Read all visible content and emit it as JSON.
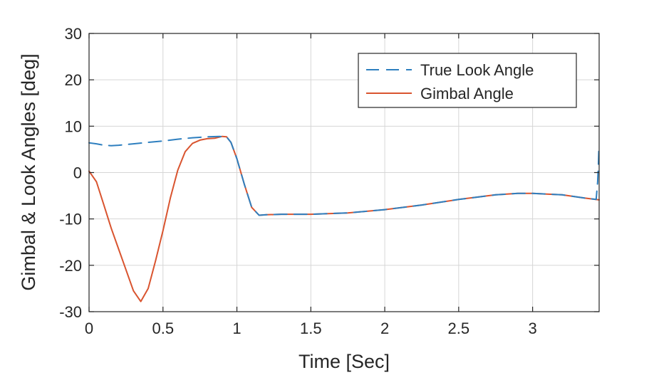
{
  "chart_data": {
    "type": "line",
    "title": "",
    "xlabel": "Time [Sec]",
    "ylabel": "Gimbal & Look Angles [deg]",
    "xlim": [
      0,
      3.45
    ],
    "ylim": [
      -30,
      30
    ],
    "xticks": [
      0,
      0.5,
      1,
      1.5,
      2,
      2.5,
      3
    ],
    "xtick_labels": [
      "0",
      "0.5",
      "1",
      "1.5",
      "2",
      "2.5",
      "3"
    ],
    "yticks": [
      30,
      20,
      10,
      0,
      -10,
      -20,
      -30
    ],
    "ytick_labels": [
      "30",
      "20",
      "10",
      "0",
      "-10",
      "-20",
      "-30"
    ],
    "grid": true,
    "legend_position": "top-right",
    "series": [
      {
        "name": "True Look Angle",
        "style": "dashed",
        "color": "#2e7fbf",
        "points": [
          [
            0,
            6.4
          ],
          [
            0.05,
            6.2
          ],
          [
            0.1,
            5.9
          ],
          [
            0.15,
            5.8
          ],
          [
            0.2,
            5.9
          ],
          [
            0.3,
            6.2
          ],
          [
            0.4,
            6.5
          ],
          [
            0.5,
            6.8
          ],
          [
            0.6,
            7.2
          ],
          [
            0.7,
            7.5
          ],
          [
            0.8,
            7.7
          ],
          [
            0.88,
            7.8
          ],
          [
            0.93,
            7.7
          ],
          [
            0.96,
            6.5
          ],
          [
            1.0,
            3.0
          ],
          [
            1.05,
            -2.5
          ],
          [
            1.1,
            -7.5
          ],
          [
            1.15,
            -9.2
          ],
          [
            1.2,
            -9.1
          ],
          [
            1.3,
            -9.0
          ],
          [
            1.5,
            -9.0
          ],
          [
            1.75,
            -8.7
          ],
          [
            2.0,
            -8.0
          ],
          [
            2.25,
            -7.0
          ],
          [
            2.5,
            -5.8
          ],
          [
            2.75,
            -4.8
          ],
          [
            2.9,
            -4.5
          ],
          [
            3.0,
            -4.5
          ],
          [
            3.2,
            -4.8
          ],
          [
            3.35,
            -5.5
          ],
          [
            3.43,
            -5.8
          ],
          [
            3.44,
            -2.0
          ],
          [
            3.445,
            2.0
          ],
          [
            3.448,
            5.0
          ]
        ]
      },
      {
        "name": "Gimbal Angle",
        "style": "solid",
        "color": "#d9542f",
        "points": [
          [
            0,
            0.3
          ],
          [
            0.05,
            -2.0
          ],
          [
            0.1,
            -7.0
          ],
          [
            0.15,
            -12.0
          ],
          [
            0.2,
            -16.5
          ],
          [
            0.25,
            -21.0
          ],
          [
            0.3,
            -25.5
          ],
          [
            0.35,
            -27.8
          ],
          [
            0.4,
            -25.0
          ],
          [
            0.45,
            -19.0
          ],
          [
            0.5,
            -12.5
          ],
          [
            0.55,
            -5.5
          ],
          [
            0.6,
            0.5
          ],
          [
            0.65,
            4.5
          ],
          [
            0.7,
            6.3
          ],
          [
            0.75,
            7.0
          ],
          [
            0.8,
            7.3
          ],
          [
            0.85,
            7.4
          ],
          [
            0.9,
            7.8
          ],
          [
            0.93,
            7.7
          ],
          [
            0.96,
            6.5
          ],
          [
            1.0,
            3.0
          ],
          [
            1.05,
            -2.5
          ],
          [
            1.1,
            -7.5
          ],
          [
            1.15,
            -9.2
          ],
          [
            1.2,
            -9.1
          ],
          [
            1.3,
            -9.0
          ],
          [
            1.5,
            -9.0
          ],
          [
            1.75,
            -8.7
          ],
          [
            2.0,
            -8.0
          ],
          [
            2.25,
            -7.0
          ],
          [
            2.5,
            -5.8
          ],
          [
            2.75,
            -4.8
          ],
          [
            2.9,
            -4.5
          ],
          [
            3.0,
            -4.5
          ],
          [
            3.2,
            -4.8
          ],
          [
            3.35,
            -5.5
          ],
          [
            3.45,
            -5.9
          ]
        ]
      }
    ]
  }
}
